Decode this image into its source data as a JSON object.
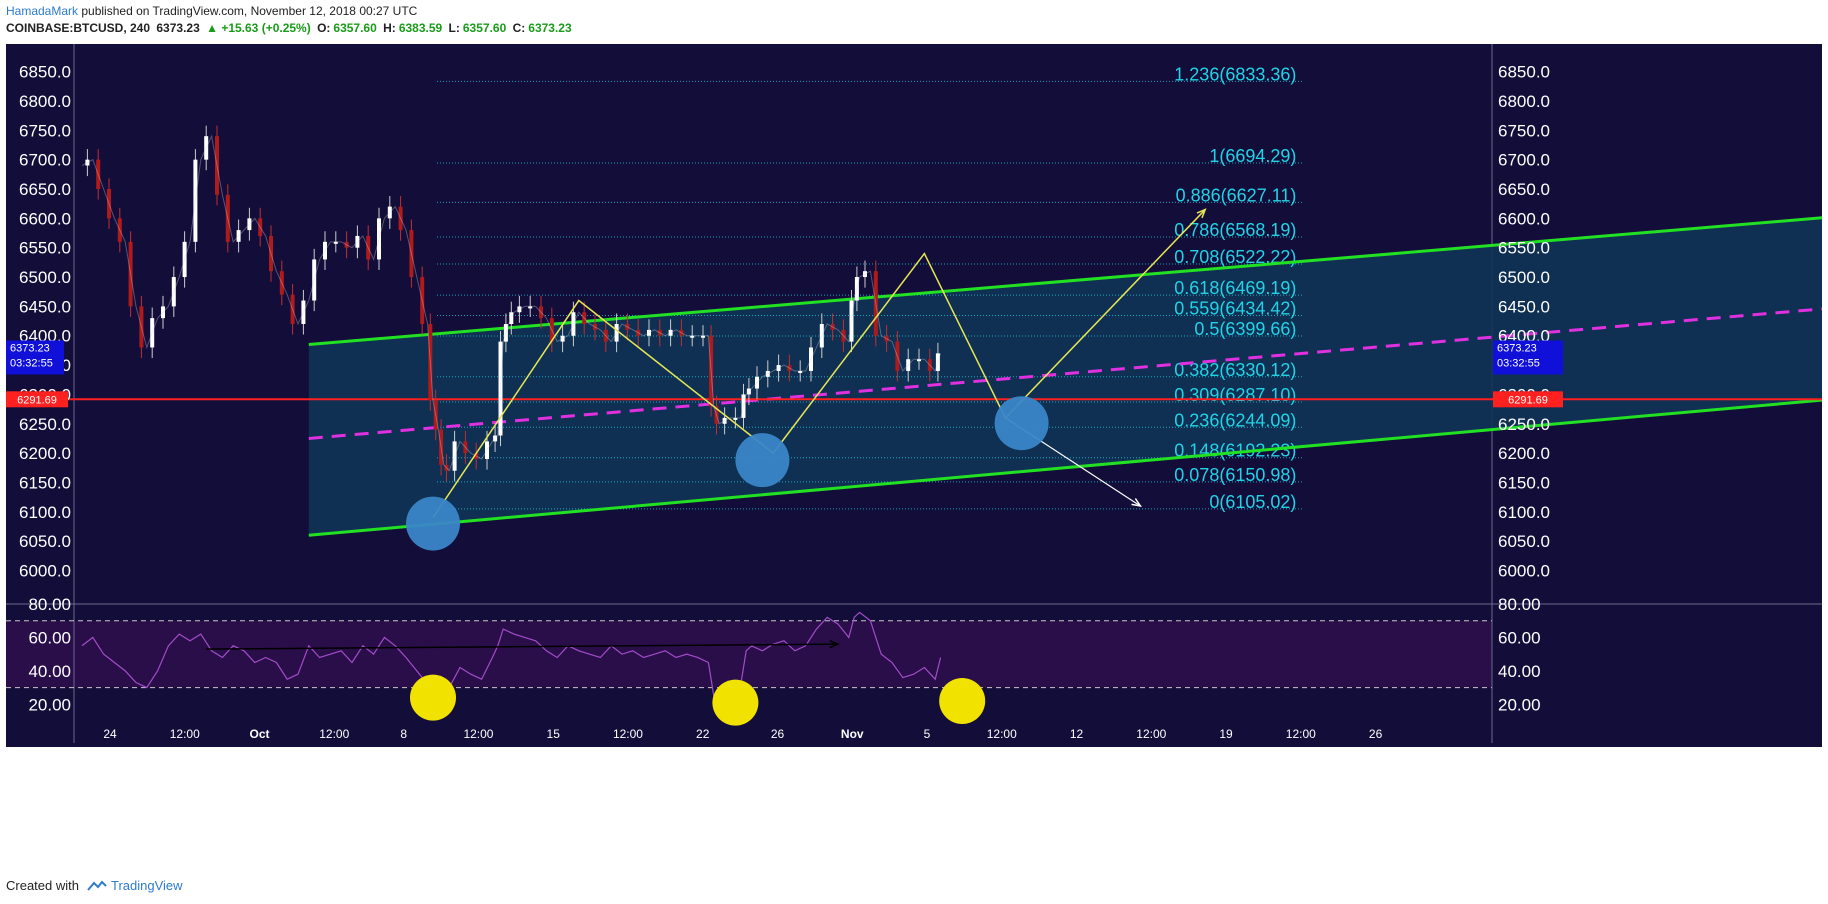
{
  "header": {
    "author": "HamadaMark",
    "published_text": " published on TradingView.com, November 12, 2018 00:27 UTC",
    "symbol": "COINBASE:BTCUSD, 240",
    "last": "6373.23",
    "change": "▲ +15.63 (+0.25%)",
    "o_label": "O:",
    "o_val": "6357.60",
    "h_label": "H:",
    "h_val": "6383.59",
    "l_label": "L:",
    "l_val": "6357.60",
    "c_label": "C:",
    "c_val": "6373.23"
  },
  "footer": {
    "created_with": "Created with",
    "brand": "TradingView"
  },
  "colors": {
    "background": "#130d3a",
    "rsi_band": "#2a0e4a",
    "channel_fill": "#0f3357",
    "channel_line": "#22e022",
    "midline": "#e030e0",
    "support": "#ff2020",
    "fib_text": "#22d3e6",
    "rsi_line": "#a24cc8",
    "bull_circle": "#3a86c8",
    "rsi_circle": "#f2e200",
    "up": "#ffffff",
    "down": "#b01a1a"
  },
  "chart_data": {
    "type": "line",
    "symbol": "COINBASE:BTCUSD",
    "interval": "240",
    "ylim": [
      5960,
      6880
    ],
    "price_ticks": [
      "6850.0",
      "6800.0",
      "6750.0",
      "6700.0",
      "6650.0",
      "6600.0",
      "6550.0",
      "6500.0",
      "6450.0",
      "6400.0",
      "6350.0",
      "6300.0",
      "6250.0",
      "6200.0",
      "6150.0",
      "6100.0",
      "6050.0",
      "6000.0"
    ],
    "price_tick_values": [
      6850,
      6800,
      6750,
      6700,
      6650,
      6600,
      6550,
      6500,
      6450,
      6400,
      6350,
      6300,
      6250,
      6200,
      6150,
      6100,
      6050,
      6000
    ],
    "time_ticks": [
      "24",
      "12:00",
      "Oct",
      "12:00",
      "8",
      "12:00",
      "15",
      "12:00",
      "22",
      "26",
      "Nov",
      "5",
      "12:00",
      "12",
      "12:00",
      "19",
      "12:00",
      "26"
    ],
    "time_tick_bold": [
      false,
      false,
      true,
      false,
      false,
      false,
      false,
      false,
      false,
      false,
      true,
      false,
      false,
      false,
      false,
      false,
      false,
      false
    ],
    "price_path": [
      [
        0,
        6690
      ],
      [
        2,
        6700
      ],
      [
        4,
        6650
      ],
      [
        6,
        6600
      ],
      [
        8,
        6560
      ],
      [
        10,
        6450
      ],
      [
        12,
        6380
      ],
      [
        14,
        6430
      ],
      [
        16,
        6450
      ],
      [
        18,
        6500
      ],
      [
        20,
        6560
      ],
      [
        22,
        6700
      ],
      [
        24,
        6740
      ],
      [
        26,
        6640
      ],
      [
        28,
        6560
      ],
      [
        30,
        6580
      ],
      [
        32,
        6600
      ],
      [
        34,
        6570
      ],
      [
        36,
        6510
      ],
      [
        38,
        6470
      ],
      [
        40,
        6420
      ],
      [
        42,
        6460
      ],
      [
        44,
        6530
      ],
      [
        46,
        6560
      ],
      [
        48,
        6560
      ],
      [
        50,
        6550
      ],
      [
        52,
        6570
      ],
      [
        54,
        6530
      ],
      [
        56,
        6600
      ],
      [
        58,
        6620
      ],
      [
        60,
        6580
      ],
      [
        62,
        6500
      ],
      [
        64,
        6420
      ],
      [
        65,
        6290
      ],
      [
        66,
        6240
      ],
      [
        67,
        6180
      ],
      [
        68,
        6170
      ],
      [
        70,
        6220
      ],
      [
        72,
        6200
      ],
      [
        74,
        6190
      ],
      [
        76,
        6220
      ],
      [
        77,
        6230
      ],
      [
        78,
        6390
      ],
      [
        79,
        6420
      ],
      [
        80,
        6440
      ],
      [
        82,
        6450
      ],
      [
        84,
        6450
      ],
      [
        86,
        6430
      ],
      [
        88,
        6390
      ],
      [
        90,
        6400
      ],
      [
        92,
        6440
      ],
      [
        94,
        6420
      ],
      [
        96,
        6410
      ],
      [
        98,
        6390
      ],
      [
        100,
        6420
      ],
      [
        102,
        6410
      ],
      [
        104,
        6400
      ],
      [
        106,
        6410
      ],
      [
        108,
        6400
      ],
      [
        110,
        6410
      ],
      [
        112,
        6400
      ],
      [
        114,
        6400
      ],
      [
        116,
        6400
      ],
      [
        117,
        6280
      ],
      [
        118,
        6250
      ],
      [
        120,
        6260
      ],
      [
        122,
        6260
      ],
      [
        123,
        6300
      ],
      [
        124,
        6310
      ],
      [
        126,
        6330
      ],
      [
        128,
        6340
      ],
      [
        130,
        6350
      ],
      [
        132,
        6340
      ],
      [
        134,
        6340
      ],
      [
        136,
        6380
      ],
      [
        138,
        6420
      ],
      [
        140,
        6410
      ],
      [
        142,
        6390
      ],
      [
        143,
        6460
      ],
      [
        144,
        6500
      ],
      [
        146,
        6510
      ],
      [
        148,
        6400
      ],
      [
        150,
        6390
      ],
      [
        152,
        6340
      ],
      [
        154,
        6360
      ],
      [
        156,
        6360
      ],
      [
        158,
        6340
      ],
      [
        159,
        6370
      ]
    ],
    "price_path_x_units": "bar index (4h bars)",
    "support_level": 6291.69,
    "support_label": "6291.69",
    "last_price_label": "6373.23",
    "countdown_label": "03:32:55",
    "fib_levels": [
      {
        "ratio": "1.236",
        "price": 6833.36,
        "label": "1.236(6833.36)"
      },
      {
        "ratio": "1",
        "price": 6694.29,
        "label": "1(6694.29)"
      },
      {
        "ratio": "0.886",
        "price": 6627.11,
        "label": "0.886(6627.11)"
      },
      {
        "ratio": "0.786",
        "price": 6568.19,
        "label": "0.786(6568.19)"
      },
      {
        "ratio": "0.708",
        "price": 6522.22,
        "label": "0.708(6522.22)"
      },
      {
        "ratio": "0.618",
        "price": 6469.19,
        "label": "0.618(6469.19)"
      },
      {
        "ratio": "0.559",
        "price": 6434.42,
        "label": "0.559(6434.42)"
      },
      {
        "ratio": "0.5",
        "price": 6399.66,
        "label": "0.5(6399.66)"
      },
      {
        "ratio": "0.382",
        "price": 6330.12,
        "label": "0.382(6330.12)"
      },
      {
        "ratio": "0.309",
        "price": 6287.1,
        "label": "0.309(6287.10)"
      },
      {
        "ratio": "0.236",
        "price": 6244.09,
        "label": "0.236(6244.09)"
      },
      {
        "ratio": "0.148",
        "price": 6192.23,
        "label": "0.148(6192.23)"
      },
      {
        "ratio": "0.078",
        "price": 6150.98,
        "label": "0.078(6150.98)"
      },
      {
        "ratio": "0",
        "price": 6105.02,
        "label": "0(6105.02)"
      }
    ],
    "channel": {
      "upper": [
        [
          42,
          6385
        ],
        [
          334,
          6610
        ]
      ],
      "lower": [
        [
          42,
          6060
        ],
        [
          334,
          6300
        ]
      ],
      "midline": [
        [
          42,
          6225
        ],
        [
          334,
          6455
        ]
      ]
    },
    "zigzag": [
      [
        65,
        6090
      ],
      [
        92,
        6460
      ],
      [
        128,
        6200
      ],
      [
        156,
        6540
      ],
      [
        171,
        6260
      ],
      [
        208,
        6615
      ]
    ],
    "projection_white": [
      [
        171,
        6260
      ],
      [
        196,
        6110
      ]
    ],
    "highlight_circles": [
      [
        65,
        6080
      ],
      [
        126,
        6188
      ],
      [
        174,
        6251
      ]
    ],
    "rsi": {
      "ylim": [
        10,
        80
      ],
      "ticks": [
        "80.00",
        "60.00",
        "40.00",
        "20.00"
      ],
      "tick_values": [
        80,
        60,
        40,
        20
      ],
      "band": [
        30,
        70
      ],
      "values": [
        [
          0,
          55
        ],
        [
          2,
          60
        ],
        [
          4,
          50
        ],
        [
          6,
          45
        ],
        [
          8,
          40
        ],
        [
          10,
          33
        ],
        [
          12,
          30
        ],
        [
          14,
          40
        ],
        [
          16,
          55
        ],
        [
          18,
          62
        ],
        [
          20,
          58
        ],
        [
          22,
          62
        ],
        [
          24,
          52
        ],
        [
          26,
          48
        ],
        [
          28,
          55
        ],
        [
          30,
          52
        ],
        [
          32,
          45
        ],
        [
          34,
          48
        ],
        [
          36,
          45
        ],
        [
          38,
          35
        ],
        [
          40,
          38
        ],
        [
          42,
          55
        ],
        [
          44,
          48
        ],
        [
          46,
          50
        ],
        [
          48,
          52
        ],
        [
          50,
          45
        ],
        [
          52,
          55
        ],
        [
          54,
          50
        ],
        [
          56,
          60
        ],
        [
          58,
          55
        ],
        [
          60,
          48
        ],
        [
          62,
          40
        ],
        [
          64,
          32
        ],
        [
          65,
          18
        ],
        [
          66,
          22
        ],
        [
          67,
          28
        ],
        [
          68,
          30
        ],
        [
          70,
          42
        ],
        [
          72,
          38
        ],
        [
          74,
          35
        ],
        [
          76,
          48
        ],
        [
          77,
          55
        ],
        [
          78,
          65
        ],
        [
          80,
          62
        ],
        [
          82,
          60
        ],
        [
          84,
          58
        ],
        [
          86,
          52
        ],
        [
          88,
          48
        ],
        [
          90,
          55
        ],
        [
          92,
          52
        ],
        [
          94,
          50
        ],
        [
          96,
          48
        ],
        [
          98,
          55
        ],
        [
          100,
          50
        ],
        [
          102,
          52
        ],
        [
          104,
          48
        ],
        [
          106,
          50
        ],
        [
          108,
          52
        ],
        [
          110,
          48
        ],
        [
          112,
          50
        ],
        [
          114,
          48
        ],
        [
          116,
          45
        ],
        [
          117,
          25
        ],
        [
          118,
          20
        ],
        [
          120,
          28
        ],
        [
          122,
          32
        ],
        [
          123,
          52
        ],
        [
          124,
          55
        ],
        [
          126,
          52
        ],
        [
          128,
          56
        ],
        [
          130,
          58
        ],
        [
          132,
          52
        ],
        [
          134,
          55
        ],
        [
          136,
          65
        ],
        [
          138,
          72
        ],
        [
          140,
          68
        ],
        [
          142,
          60
        ],
        [
          143,
          72
        ],
        [
          144,
          75
        ],
        [
          146,
          70
        ],
        [
          148,
          50
        ],
        [
          150,
          45
        ],
        [
          152,
          36
        ],
        [
          154,
          38
        ],
        [
          156,
          42
        ],
        [
          158,
          35
        ],
        [
          159,
          48
        ]
      ],
      "divergence_line": [
        [
          23,
          53
        ],
        [
          140,
          56
        ]
      ],
      "circles": [
        [
          65,
          24
        ],
        [
          121,
          21
        ],
        [
          163,
          22
        ]
      ]
    }
  }
}
